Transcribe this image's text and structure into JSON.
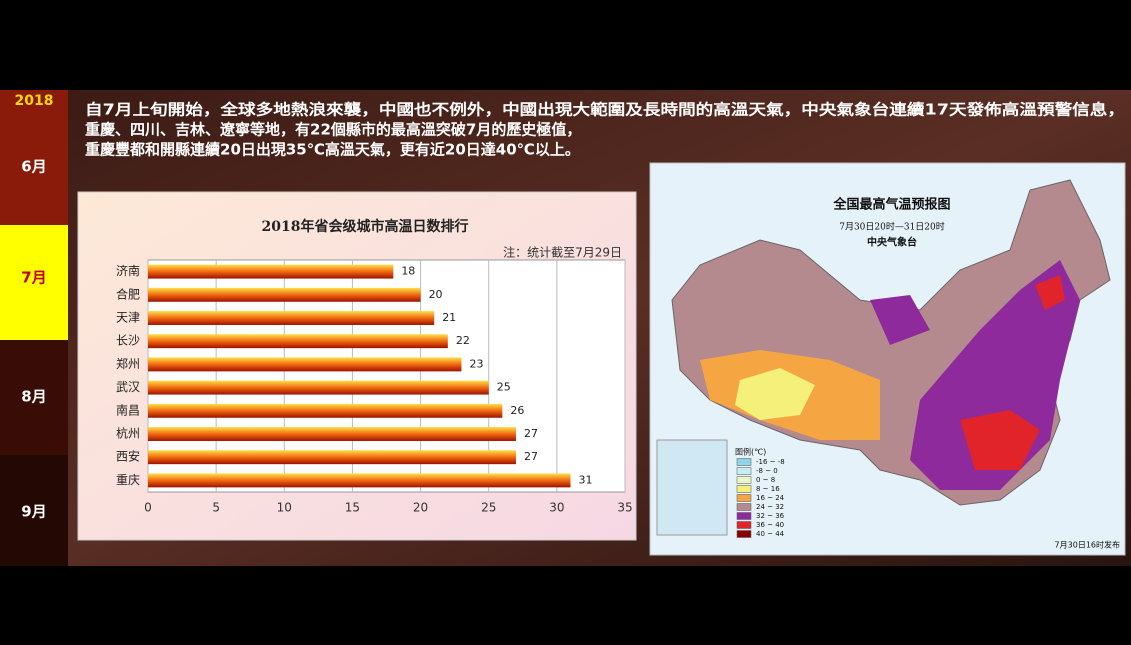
{
  "sidebar": {
    "year": "2018",
    "months": [
      "6月",
      "7月",
      "8月",
      "9月"
    ]
  },
  "header": {
    "lines": [
      "自7月上旬開始，全球多地熱浪來襲，中國也不例外，中國出現大範圍及長時間的高溫天氣，中央氣象台連續17天發佈高溫預警信息，",
      "重慶、四川、吉林、遼寧等地，有22個縣市的最高溫突破7月的歷史極值，",
      "重慶豐都和開縣連續20日出現35℃高溫天氣，更有近20日達40℃以上。"
    ]
  },
  "chart_data": {
    "type": "hbar",
    "title": "2018年省会级城市高温日数排行",
    "note": "注：统计截至7月29日",
    "categories": [
      "济南",
      "合肥",
      "天津",
      "长沙",
      "郑州",
      "武汉",
      "南昌",
      "杭州",
      "西安",
      "重庆"
    ],
    "values": [
      18,
      20,
      21,
      22,
      23,
      25,
      26,
      27,
      27,
      31
    ],
    "color": "#f06a10",
    "xlim": [
      0,
      35
    ],
    "xticks": [
      0,
      5,
      10,
      15,
      20,
      25,
      30,
      35
    ],
    "grid": true
  },
  "map": {
    "title": "全国最高气温预报图",
    "period": "7月30日20时—31日20时",
    "source": "中央气象台",
    "legend_title": "图例(℃)",
    "legend": [
      {
        "label": "-16 ~ -8",
        "color": "#8fd3e8"
      },
      {
        "label": "-8 ~ 0",
        "color": "#c7ecf4"
      },
      {
        "label": "0 ~ 8",
        "color": "#e8f6c8"
      },
      {
        "label": "8 ~ 16",
        "color": "#f4f07a"
      },
      {
        "label": "16 ~ 24",
        "color": "#f5a542"
      },
      {
        "label": "24 ~ 32",
        "color": "#b58a8f"
      },
      {
        "label": "32 ~ 36",
        "color": "#8e2a9c"
      },
      {
        "label": "36 ~ 40",
        "color": "#e0242a"
      },
      {
        "label": "40 ~ 44",
        "color": "#8a0000"
      }
    ],
    "issued": "7月30日16时发布"
  }
}
